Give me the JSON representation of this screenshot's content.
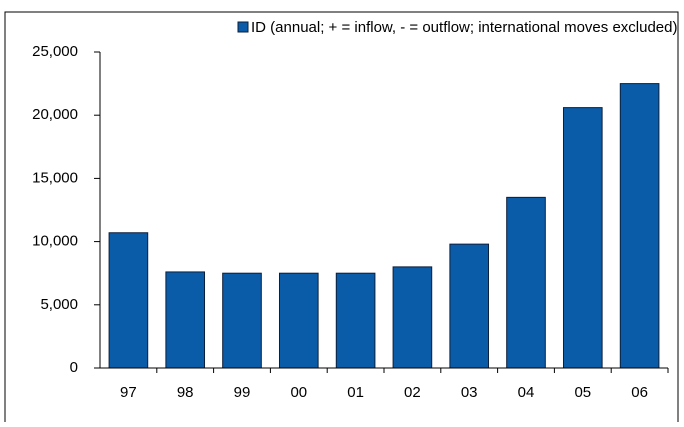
{
  "chart_data": {
    "type": "bar",
    "categories": [
      "97",
      "98",
      "99",
      "00",
      "01",
      "02",
      "03",
      "04",
      "05",
      "06"
    ],
    "series": [
      {
        "name": "ID (annual; + = inflow, - = outflow; international moves excluded)",
        "color": "#0a5ca8",
        "values": [
          10700,
          7600,
          7500,
          7500,
          7500,
          8000,
          9800,
          13500,
          20600,
          22500
        ]
      }
    ],
    "ylim": [
      0,
      25000
    ],
    "yticks": [
      0,
      {
        "value": 5000,
        "label": "5,000"
      },
      {
        "value": 10000,
        "label": "10,000"
      },
      {
        "value": 15000,
        "label": "15,000"
      },
      {
        "value": 20000,
        "label": "20,000"
      },
      {
        "value": 25000,
        "label": "25,000"
      }
    ],
    "legend": "top"
  }
}
